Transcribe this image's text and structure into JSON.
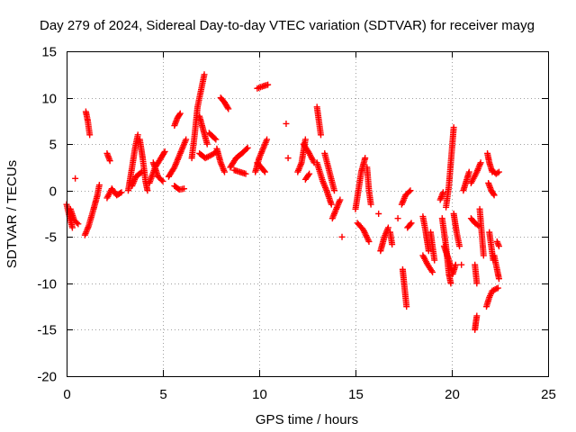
{
  "chart_data": {
    "type": "scatter",
    "title": "Day 279 of 2024, Sidereal Day-to-day VTEC variation (SDTVAR) for receiver mayg",
    "xlabel": "GPS time / hours",
    "ylabel": "SDTVAR / TECUs",
    "xlim": [
      0,
      25
    ],
    "ylim": [
      -20,
      15
    ],
    "xticks": [
      0,
      5,
      10,
      15,
      20,
      25
    ],
    "yticks": [
      -20,
      -15,
      -10,
      -5,
      0,
      5,
      10,
      15
    ],
    "xtick_labels": [
      "0",
      "5",
      "10",
      "15",
      "20",
      "25"
    ],
    "ytick_labels": [
      "-20",
      "-15",
      "-10",
      "-5",
      "0",
      "5",
      "10",
      "15"
    ],
    "grid": true,
    "marker": "+",
    "series": [
      {
        "name": "SDTVAR",
        "color": "#ff0000",
        "segments": [
          [
            [
              0.0,
              -1.5
            ],
            [
              0.15,
              -2.8
            ],
            [
              0.3,
              -4.0
            ]
          ],
          [
            [
              0.2,
              -2.0
            ],
            [
              0.4,
              -3.2
            ],
            [
              0.6,
              -3.6
            ]
          ],
          [
            [
              0.45,
              1.3
            ]
          ],
          [
            [
              0.95,
              -4.8
            ],
            [
              1.15,
              -3.8
            ],
            [
              1.4,
              -2.0
            ],
            [
              1.6,
              -0.5
            ],
            [
              1.7,
              0.6
            ]
          ],
          [
            [
              1.0,
              8.5
            ],
            [
              1.1,
              7.5
            ],
            [
              1.2,
              6.0
            ]
          ],
          [
            [
              2.1,
              4.0
            ],
            [
              2.25,
              3.2
            ]
          ],
          [
            [
              2.1,
              -0.8
            ],
            [
              2.35,
              0.2
            ],
            [
              2.6,
              -0.5
            ],
            [
              2.85,
              -0.2
            ]
          ],
          [
            [
              3.2,
              0.0
            ],
            [
              3.4,
              2.5
            ],
            [
              3.55,
              4.5
            ],
            [
              3.7,
              6.0
            ]
          ],
          [
            [
              3.4,
              0.5
            ],
            [
              3.6,
              1.5
            ],
            [
              3.9,
              2.0
            ]
          ],
          [
            [
              3.8,
              5.5
            ],
            [
              3.95,
              3.5
            ],
            [
              4.1,
              1.0
            ],
            [
              4.2,
              0.0
            ]
          ],
          [
            [
              4.3,
              0.8
            ],
            [
              4.6,
              2.5
            ],
            [
              4.9,
              3.5
            ],
            [
              5.1,
              4.2
            ]
          ],
          [
            [
              4.5,
              3.0
            ],
            [
              4.75,
              1.5
            ],
            [
              5.0,
              1.0
            ]
          ],
          [
            [
              5.3,
              1.5
            ],
            [
              5.6,
              2.5
            ],
            [
              5.9,
              4.0
            ],
            [
              6.2,
              5.5
            ]
          ],
          [
            [
              5.6,
              0.5
            ],
            [
              5.85,
              0.1
            ],
            [
              6.1,
              0.2
            ]
          ],
          [
            [
              5.6,
              7.0
            ],
            [
              5.75,
              7.8
            ],
            [
              5.9,
              8.3
            ]
          ],
          [
            [
              6.5,
              3.5
            ],
            [
              6.65,
              6.0
            ],
            [
              6.8,
              9.0
            ],
            [
              6.95,
              10.5
            ],
            [
              7.15,
              12.5
            ]
          ],
          [
            [
              6.9,
              4.0
            ],
            [
              7.2,
              3.5
            ],
            [
              7.5,
              3.8
            ],
            [
              7.8,
              4.2
            ]
          ],
          [
            [
              6.9,
              8.0
            ],
            [
              7.1,
              6.5
            ],
            [
              7.3,
              5.0
            ]
          ],
          [
            [
              7.4,
              6.2
            ],
            [
              7.75,
              5.5
            ]
          ],
          [
            [
              7.8,
              4.5
            ],
            [
              8.0,
              3.0
            ],
            [
              8.2,
              2.0
            ]
          ],
          [
            [
              8.0,
              10.0
            ],
            [
              8.2,
              9.5
            ],
            [
              8.4,
              8.8
            ]
          ],
          [
            [
              8.5,
              2.5
            ],
            [
              8.8,
              3.5
            ],
            [
              9.1,
              4.0
            ],
            [
              9.4,
              4.6
            ]
          ],
          [
            [
              8.7,
              2.2
            ],
            [
              9.0,
              2.0
            ],
            [
              9.3,
              1.8
            ]
          ],
          [
            [
              9.8,
              2.0
            ],
            [
              10.0,
              3.5
            ],
            [
              10.2,
              4.5
            ],
            [
              10.4,
              5.5
            ]
          ],
          [
            [
              9.9,
              3.0
            ],
            [
              10.1,
              2.5
            ],
            [
              10.3,
              2.0
            ]
          ],
          [
            [
              9.9,
              11.0
            ],
            [
              10.15,
              11.2
            ],
            [
              10.45,
              11.4
            ]
          ],
          [
            [
              11.4,
              7.2
            ]
          ],
          [
            [
              11.5,
              3.5
            ]
          ],
          [
            [
              12.0,
              2.0
            ],
            [
              12.2,
              3.0
            ],
            [
              12.4,
              5.5
            ]
          ],
          [
            [
              12.3,
              5.0
            ],
            [
              12.6,
              4.0
            ],
            [
              12.85,
              3.0
            ]
          ],
          [
            [
              12.4,
              1.2
            ],
            [
              12.6,
              1.8
            ]
          ],
          [
            [
              13.0,
              9.0
            ],
            [
              13.1,
              7.5
            ],
            [
              13.2,
              6.0
            ]
          ],
          [
            [
              13.0,
              3.0
            ],
            [
              13.3,
              1.0
            ],
            [
              13.5,
              0.0
            ],
            [
              13.75,
              -1.5
            ]
          ],
          [
            [
              13.4,
              4.0
            ],
            [
              13.65,
              2.0
            ],
            [
              13.9,
              0.0
            ]
          ],
          [
            [
              13.8,
              -3.0
            ],
            [
              14.0,
              -2.0
            ],
            [
              14.2,
              -1.0
            ]
          ],
          [
            [
              14.3,
              -5.0
            ]
          ],
          [
            [
              15.0,
              -2.0
            ],
            [
              15.15,
              0.0
            ],
            [
              15.3,
              2.0
            ],
            [
              15.5,
              3.5
            ]
          ],
          [
            [
              15.1,
              -3.5
            ],
            [
              15.4,
              -4.2
            ],
            [
              15.7,
              -5.5
            ]
          ],
          [
            [
              15.6,
              2.5
            ],
            [
              15.7,
              0.0
            ],
            [
              15.8,
              -1.5
            ]
          ],
          [
            [
              16.2,
              -2.5
            ]
          ],
          [
            [
              16.3,
              -6.5
            ],
            [
              16.5,
              -5.0
            ],
            [
              16.7,
              -4.0
            ]
          ],
          [
            [
              16.8,
              -4.5
            ],
            [
              16.9,
              -5.8
            ]
          ],
          [
            [
              17.2,
              -3.0
            ]
          ],
          [
            [
              17.4,
              -1.5
            ],
            [
              17.6,
              -0.5
            ],
            [
              17.85,
              0.0
            ]
          ],
          [
            [
              17.45,
              -8.5
            ],
            [
              17.55,
              -10.5
            ],
            [
              17.65,
              -12.5
            ]
          ],
          [
            [
              17.7,
              -4.0
            ],
            [
              17.9,
              -3.5
            ]
          ],
          [
            [
              18.5,
              -2.8
            ],
            [
              18.65,
              -4.5
            ],
            [
              18.8,
              -6.5
            ]
          ],
          [
            [
              18.5,
              -7.0
            ],
            [
              18.75,
              -8.0
            ],
            [
              19.0,
              -8.8
            ]
          ],
          [
            [
              18.9,
              -4.5
            ],
            [
              19.0,
              -6.0
            ],
            [
              19.1,
              -7.5
            ]
          ],
          [
            [
              19.4,
              -1.0
            ],
            [
              19.55,
              -0.2
            ]
          ],
          [
            [
              19.5,
              -3.0
            ],
            [
              19.7,
              -6.0
            ],
            [
              19.85,
              -9.0
            ],
            [
              19.95,
              -10.0
            ]
          ],
          [
            [
              19.6,
              -6.0
            ],
            [
              19.85,
              -7.5
            ],
            [
              20.05,
              -9.0
            ],
            [
              20.2,
              -8.0
            ]
          ],
          [
            [
              19.7,
              -1.8
            ],
            [
              19.85,
              0.5
            ],
            [
              19.95,
              3.0
            ],
            [
              20.1,
              6.8
            ]
          ],
          [
            [
              20.1,
              -2.5
            ],
            [
              20.25,
              -4.5
            ],
            [
              20.4,
              -6.0
            ]
          ],
          [
            [
              20.5,
              -8.0
            ]
          ],
          [
            [
              20.6,
              0.0
            ],
            [
              20.75,
              1.0
            ],
            [
              20.9,
              2.0
            ]
          ],
          [
            [
              21.0,
              -3.0
            ],
            [
              21.2,
              -3.5
            ],
            [
              21.4,
              -3.8
            ]
          ],
          [
            [
              21.0,
              0.8
            ],
            [
              21.3,
              2.0
            ],
            [
              21.5,
              3.0
            ]
          ],
          [
            [
              21.2,
              -8.0
            ],
            [
              21.3,
              -10.0
            ]
          ],
          [
            [
              21.3,
              -13.5
            ],
            [
              21.25,
              -14.2
            ],
            [
              21.2,
              -15.0
            ]
          ],
          [
            [
              21.45,
              -2.0
            ],
            [
              21.55,
              -4.5
            ],
            [
              21.65,
              -7.0
            ]
          ],
          [
            [
              21.8,
              -12.5
            ],
            [
              21.95,
              -11.5
            ],
            [
              22.1,
              -10.8
            ],
            [
              22.4,
              -10.5
            ]
          ],
          [
            [
              21.85,
              4.0
            ],
            [
              21.95,
              3.0
            ],
            [
              22.1,
              2.0
            ]
          ],
          [
            [
              21.9,
              0.8
            ],
            [
              22.05,
              0.0
            ],
            [
              22.2,
              -0.5
            ]
          ],
          [
            [
              21.95,
              -4.5
            ],
            [
              22.05,
              -6.0
            ],
            [
              22.15,
              -7.5
            ]
          ],
          [
            [
              22.1,
              2.2
            ],
            [
              22.3,
              1.8
            ],
            [
              22.45,
              2.0
            ]
          ],
          [
            [
              22.2,
              -7.0
            ],
            [
              22.35,
              -8.5
            ],
            [
              22.45,
              -9.5
            ]
          ],
          [
            [
              22.35,
              -5.5
            ],
            [
              22.45,
              -6.0
            ]
          ]
        ]
      }
    ]
  }
}
